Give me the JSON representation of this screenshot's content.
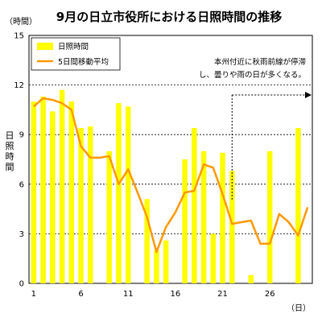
{
  "chart_data": {
    "type": "bar",
    "title": "9月の日立市役所における日照時間の推移",
    "y_unit": "（時間）",
    "x_unit": "（日）",
    "ylabel": "日照時間",
    "ylim": [
      0,
      15
    ],
    "yticks": [
      0,
      3,
      6,
      9,
      12,
      15
    ],
    "xlim": [
      0.5,
      30.5
    ],
    "xticks": [
      1,
      6,
      11,
      16,
      21,
      26
    ],
    "grid": true,
    "legend_position": "top-left",
    "annotation": {
      "lines": [
        "本州付近に秋雨前線が停滞",
        "し、曇りや雨の日が多くなる。"
      ],
      "start_day": 22
    },
    "x": [
      1,
      2,
      3,
      4,
      5,
      6,
      7,
      8,
      9,
      10,
      11,
      12,
      13,
      14,
      15,
      16,
      17,
      18,
      19,
      20,
      21,
      22,
      23,
      24,
      25,
      26,
      27,
      28,
      29,
      30
    ],
    "series": [
      {
        "name": "日照時間",
        "kind": "bar",
        "color": "#ffff00",
        "values": [
          11.0,
          11.3,
          10.4,
          11.7,
          11.0,
          9.4,
          9.5,
          0,
          8.0,
          10.9,
          10.7,
          0,
          5.1,
          2.0,
          2.6,
          0,
          7.5,
          9.4,
          8.0,
          3.0,
          7.9,
          6.8,
          0,
          0.5,
          0,
          8.0,
          0,
          0,
          9.4,
          0
        ]
      },
      {
        "name": "5日間移動平均",
        "kind": "line",
        "color": "#ff9900",
        "values": [
          10.7,
          11.2,
          11.1,
          10.9,
          10.5,
          8.3,
          7.6,
          7.6,
          7.7,
          6.0,
          6.9,
          5.5,
          4.0,
          1.9,
          3.4,
          4.3,
          5.5,
          5.6,
          7.2,
          7.0,
          5.4,
          3.6,
          3.7,
          3.8,
          2.4,
          2.4,
          4.2,
          3.7,
          2.9,
          4.6
        ]
      }
    ]
  }
}
